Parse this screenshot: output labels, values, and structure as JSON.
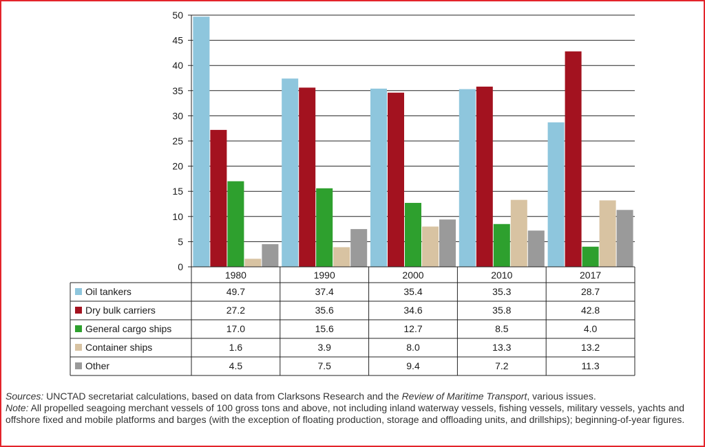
{
  "chart_data": {
    "type": "bar",
    "categories": [
      "1980",
      "1990",
      "2000",
      "2010",
      "2017"
    ],
    "series": [
      {
        "name": "Oil tankers",
        "color": "#8ec6dd",
        "values": [
          49.7,
          37.4,
          35.4,
          35.3,
          28.7
        ]
      },
      {
        "name": "Dry bulk carriers",
        "color": "#a3121f",
        "values": [
          27.2,
          35.6,
          34.6,
          35.8,
          42.8
        ]
      },
      {
        "name": "General cargo ships",
        "color": "#2ea02e",
        "values": [
          17.0,
          15.6,
          12.7,
          8.5,
          4.0
        ]
      },
      {
        "name": "Container ships",
        "color": "#d8c3a2",
        "values": [
          1.6,
          3.9,
          8.0,
          13.3,
          13.2
        ]
      },
      {
        "name": "Other",
        "color": "#9a9a9a",
        "values": [
          4.5,
          7.5,
          9.4,
          7.2,
          11.3
        ]
      }
    ],
    "ylim": [
      0,
      50
    ],
    "yticks": [
      0,
      5,
      10,
      15,
      20,
      25,
      30,
      35,
      40,
      45,
      50
    ],
    "grid": true,
    "legend": "data table below chart"
  },
  "notes": {
    "sources_label": "Sources:",
    "sources_pre": " UNCTAD secretariat calculations, based on data from Clarksons Research and the ",
    "sources_italic": "Review of Maritime Transport",
    "sources_post": ", various issues.",
    "note_label": "Note:",
    "note_text": " All propelled seagoing merchant vessels of 100 gross tons and above, not including inland waterway vessels, fishing vessels, military vessels, yachts and offshore fixed and mobile platforms and barges (with the exception of floating production, storage and offloading units, and drillships); beginning-of-year figures."
  }
}
